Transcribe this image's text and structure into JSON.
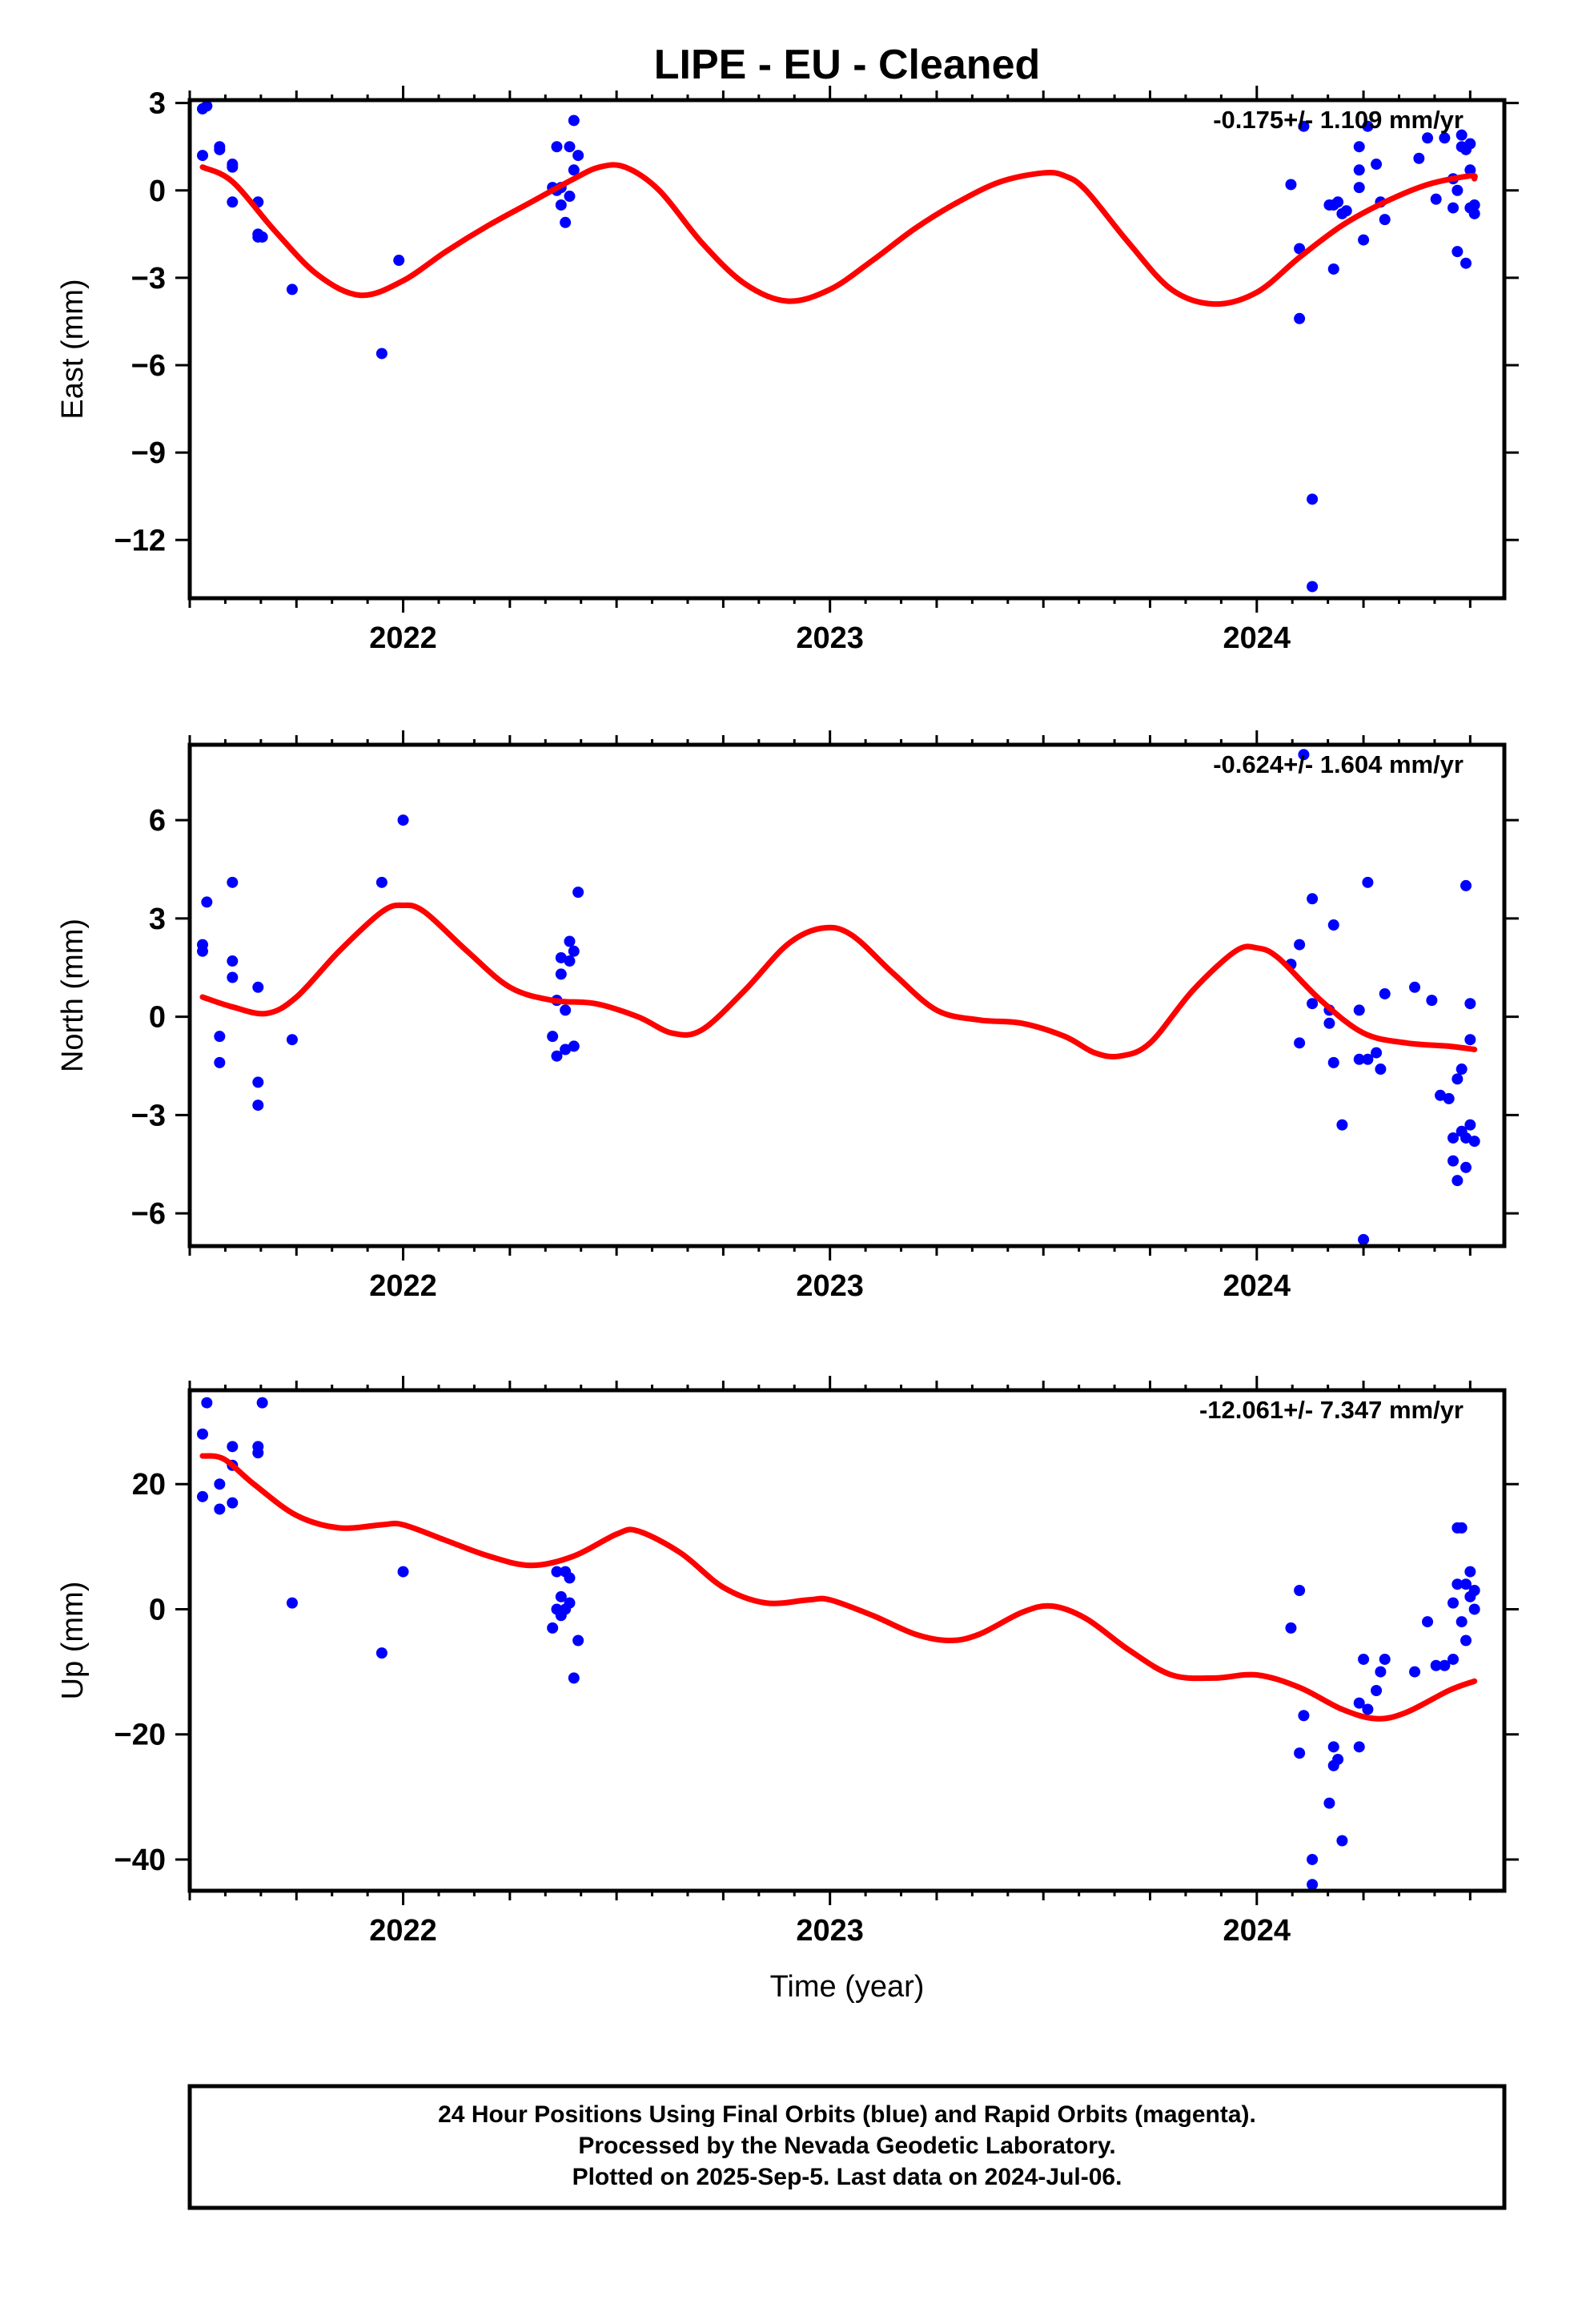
{
  "title": "LIPE  - EU - Cleaned",
  "xlabel": "Time (year)",
  "footer": {
    "line1": "24 Hour Positions Using Final Orbits (blue) and Rapid Orbits (magenta).",
    "line2": "Processed by the Nevada Geodetic Laboratory.",
    "line3": "Plotted on 2025-Sep-5. Last data on 2024-Jul-06."
  },
  "colors": {
    "points": "#0000ff",
    "fit": "#ff0000",
    "axes": "#000000"
  },
  "chart_data": [
    {
      "type": "scatter",
      "ylabel": "East (mm)",
      "rate": "-0.175+/- 1.109 mm/yr",
      "xlim": [
        2021.5,
        2024.58
      ],
      "ylim": [
        -14,
        3.1
      ],
      "yticks": [
        3,
        0,
        -3,
        -6,
        -9,
        -12
      ],
      "ytick_labels": [
        "3",
        "0",
        "−3",
        "−6",
        "−9",
        "−12"
      ],
      "xticks": [
        2022,
        2023,
        2024
      ],
      "xtick_labels": [
        "2022",
        "2023",
        "2024"
      ],
      "points": [
        [
          2021.53,
          1.2
        ],
        [
          2021.53,
          2.8
        ],
        [
          2021.54,
          2.9
        ],
        [
          2021.57,
          1.4
        ],
        [
          2021.57,
          1.5
        ],
        [
          2021.6,
          -0.4
        ],
        [
          2021.6,
          0.9
        ],
        [
          2021.6,
          0.8
        ],
        [
          2021.66,
          -1.5
        ],
        [
          2021.66,
          -1.6
        ],
        [
          2021.66,
          -0.4
        ],
        [
          2021.67,
          -1.6
        ],
        [
          2021.74,
          -3.4
        ],
        [
          2021.95,
          -5.6
        ],
        [
          2021.99,
          -2.4
        ],
        [
          2022.35,
          0.1
        ],
        [
          2022.36,
          1.5
        ],
        [
          2022.36,
          0.0
        ],
        [
          2022.37,
          -0.5
        ],
        [
          2022.37,
          0.1
        ],
        [
          2022.38,
          -1.1
        ],
        [
          2022.39,
          -0.2
        ],
        [
          2022.39,
          1.5
        ],
        [
          2022.4,
          0.7
        ],
        [
          2022.4,
          2.4
        ],
        [
          2022.41,
          1.2
        ],
        [
          2024.08,
          0.2
        ],
        [
          2024.1,
          -2.0
        ],
        [
          2024.1,
          -4.4
        ],
        [
          2024.11,
          2.2
        ],
        [
          2024.13,
          -10.6
        ],
        [
          2024.13,
          -13.6
        ],
        [
          2024.17,
          -0.5
        ],
        [
          2024.18,
          -0.5
        ],
        [
          2024.18,
          -2.7
        ],
        [
          2024.19,
          -0.4
        ],
        [
          2024.2,
          -0.8
        ],
        [
          2024.21,
          -0.7
        ],
        [
          2024.24,
          0.1
        ],
        [
          2024.24,
          0.7
        ],
        [
          2024.24,
          1.5
        ],
        [
          2024.25,
          -1.7
        ],
        [
          2024.26,
          2.2
        ],
        [
          2024.28,
          0.9
        ],
        [
          2024.29,
          -0.4
        ],
        [
          2024.3,
          -1.0
        ],
        [
          2024.38,
          1.1
        ],
        [
          2024.4,
          1.8
        ],
        [
          2024.42,
          -0.3
        ],
        [
          2024.44,
          1.8
        ],
        [
          2024.46,
          0.4
        ],
        [
          2024.46,
          -0.6
        ],
        [
          2024.47,
          0.0
        ],
        [
          2024.47,
          -2.1
        ],
        [
          2024.48,
          1.5
        ],
        [
          2024.48,
          1.9
        ],
        [
          2024.49,
          1.4
        ],
        [
          2024.49,
          -2.5
        ],
        [
          2024.5,
          -0.6
        ],
        [
          2024.5,
          1.6
        ],
        [
          2024.5,
          0.7
        ],
        [
          2024.51,
          -0.5
        ],
        [
          2024.51,
          -0.8
        ]
      ],
      "fit": [
        [
          2021.53,
          0.8
        ],
        [
          2021.6,
          0.3
        ],
        [
          2021.7,
          -1.4
        ],
        [
          2021.8,
          -2.9
        ],
        [
          2021.9,
          -3.6
        ],
        [
          2022.0,
          -3.1
        ],
        [
          2022.1,
          -2.1
        ],
        [
          2022.2,
          -1.2
        ],
        [
          2022.3,
          -0.4
        ],
        [
          2022.4,
          0.4
        ],
        [
          2022.46,
          0.8
        ],
        [
          2022.52,
          0.8
        ],
        [
          2022.6,
          0.0
        ],
        [
          2022.7,
          -1.8
        ],
        [
          2022.8,
          -3.2
        ],
        [
          2022.9,
          -3.8
        ],
        [
          2023.0,
          -3.4
        ],
        [
          2023.1,
          -2.4
        ],
        [
          2023.2,
          -1.3
        ],
        [
          2023.3,
          -0.4
        ],
        [
          2023.4,
          0.3
        ],
        [
          2023.5,
          0.6
        ],
        [
          2023.55,
          0.5
        ],
        [
          2023.6,
          0.0
        ],
        [
          2023.7,
          -1.8
        ],
        [
          2023.8,
          -3.4
        ],
        [
          2023.9,
          -3.9
        ],
        [
          2024.0,
          -3.5
        ],
        [
          2024.1,
          -2.3
        ],
        [
          2024.2,
          -1.2
        ],
        [
          2024.3,
          -0.4
        ],
        [
          2024.4,
          0.2
        ],
        [
          2024.5,
          0.5
        ],
        [
          2024.51,
          0.4
        ]
      ]
    },
    {
      "type": "scatter",
      "ylabel": "North (mm)",
      "rate": "-0.624+/- 1.604 mm/yr",
      "xlim": [
        2021.5,
        2024.58
      ],
      "ylim": [
        -7,
        8.3
      ],
      "yticks": [
        6,
        3,
        0,
        -3,
        -6
      ],
      "ytick_labels": [
        "6",
        "3",
        "0",
        "−3",
        "−6"
      ],
      "xticks": [
        2022,
        2023,
        2024
      ],
      "xtick_labels": [
        "2022",
        "2023",
        "2024"
      ],
      "points": [
        [
          2021.53,
          2.2
        ],
        [
          2021.53,
          2.0
        ],
        [
          2021.54,
          3.5
        ],
        [
          2021.57,
          -1.4
        ],
        [
          2021.57,
          -0.6
        ],
        [
          2021.6,
          4.1
        ],
        [
          2021.6,
          1.7
        ],
        [
          2021.6,
          1.2
        ],
        [
          2021.66,
          0.9
        ],
        [
          2021.66,
          -2.0
        ],
        [
          2021.66,
          -2.7
        ],
        [
          2021.74,
          -0.7
        ],
        [
          2021.95,
          4.1
        ],
        [
          2022.0,
          6.0
        ],
        [
          2022.35,
          -0.6
        ],
        [
          2022.36,
          -1.2
        ],
        [
          2022.36,
          0.5
        ],
        [
          2022.37,
          1.8
        ],
        [
          2022.37,
          1.3
        ],
        [
          2022.38,
          0.2
        ],
        [
          2022.38,
          -1.0
        ],
        [
          2022.39,
          1.7
        ],
        [
          2022.39,
          2.3
        ],
        [
          2022.4,
          2.0
        ],
        [
          2022.4,
          -0.9
        ],
        [
          2022.41,
          3.8
        ],
        [
          2024.08,
          1.6
        ],
        [
          2024.1,
          2.2
        ],
        [
          2024.1,
          -0.8
        ],
        [
          2024.11,
          8.0
        ],
        [
          2024.13,
          3.6
        ],
        [
          2024.13,
          0.4
        ],
        [
          2024.17,
          0.2
        ],
        [
          2024.17,
          -0.2
        ],
        [
          2024.18,
          2.8
        ],
        [
          2024.18,
          -1.4
        ],
        [
          2024.2,
          -3.3
        ],
        [
          2024.24,
          0.2
        ],
        [
          2024.24,
          -1.3
        ],
        [
          2024.25,
          -6.8
        ],
        [
          2024.26,
          4.1
        ],
        [
          2024.26,
          -1.3
        ],
        [
          2024.28,
          -1.1
        ],
        [
          2024.29,
          -1.6
        ],
        [
          2024.3,
          0.7
        ],
        [
          2024.37,
          0.9
        ],
        [
          2024.41,
          0.5
        ],
        [
          2024.43,
          -2.4
        ],
        [
          2024.45,
          -2.5
        ],
        [
          2024.46,
          -3.7
        ],
        [
          2024.46,
          -4.4
        ],
        [
          2024.47,
          -5.0
        ],
        [
          2024.47,
          -1.9
        ],
        [
          2024.48,
          -3.5
        ],
        [
          2024.48,
          -1.6
        ],
        [
          2024.49,
          -4.6
        ],
        [
          2024.49,
          -3.7
        ],
        [
          2024.49,
          4.0
        ],
        [
          2024.5,
          -3.3
        ],
        [
          2024.5,
          0.4
        ],
        [
          2024.5,
          -0.7
        ],
        [
          2024.51,
          -3.8
        ]
      ],
      "fit": [
        [
          2021.53,
          0.6
        ],
        [
          2021.6,
          0.3
        ],
        [
          2021.68,
          0.1
        ],
        [
          2021.75,
          0.6
        ],
        [
          2021.85,
          2.0
        ],
        [
          2021.95,
          3.2
        ],
        [
          2022.0,
          3.4
        ],
        [
          2022.05,
          3.2
        ],
        [
          2022.15,
          2.0
        ],
        [
          2022.25,
          0.9
        ],
        [
          2022.35,
          0.5
        ],
        [
          2022.45,
          0.4
        ],
        [
          2022.55,
          0.0
        ],
        [
          2022.63,
          -0.5
        ],
        [
          2022.7,
          -0.4
        ],
        [
          2022.8,
          0.8
        ],
        [
          2022.9,
          2.2
        ],
        [
          2022.98,
          2.7
        ],
        [
          2023.05,
          2.5
        ],
        [
          2023.15,
          1.3
        ],
        [
          2023.25,
          0.2
        ],
        [
          2023.35,
          -0.1
        ],
        [
          2023.45,
          -0.2
        ],
        [
          2023.55,
          -0.6
        ],
        [
          2023.62,
          -1.1
        ],
        [
          2023.68,
          -1.2
        ],
        [
          2023.75,
          -0.8
        ],
        [
          2023.85,
          0.8
        ],
        [
          2023.95,
          2.0
        ],
        [
          2024.0,
          2.1
        ],
        [
          2024.05,
          1.8
        ],
        [
          2024.15,
          0.5
        ],
        [
          2024.25,
          -0.5
        ],
        [
          2024.35,
          -0.8
        ],
        [
          2024.45,
          -0.9
        ],
        [
          2024.51,
          -1.0
        ]
      ]
    },
    {
      "type": "scatter",
      "ylabel": "Up (mm)",
      "rate": "-12.061+/- 7.347 mm/yr",
      "xlim": [
        2021.5,
        2024.58
      ],
      "ylim": [
        -45,
        35
      ],
      "yticks": [
        20,
        0,
        -20,
        -40
      ],
      "ytick_labels": [
        "20",
        "0",
        "−20",
        "−40"
      ],
      "xticks": [
        2022,
        2023,
        2024
      ],
      "xtick_labels": [
        "2022",
        "2023",
        "2024"
      ],
      "points": [
        [
          2021.53,
          28
        ],
        [
          2021.53,
          18
        ],
        [
          2021.54,
          33
        ],
        [
          2021.57,
          16
        ],
        [
          2021.57,
          20
        ],
        [
          2021.6,
          17
        ],
        [
          2021.6,
          23
        ],
        [
          2021.6,
          26
        ],
        [
          2021.66,
          26
        ],
        [
          2021.66,
          25
        ],
        [
          2021.67,
          33
        ],
        [
          2021.74,
          1
        ],
        [
          2021.95,
          -7
        ],
        [
          2022.0,
          6
        ],
        [
          2022.35,
          -3
        ],
        [
          2022.36,
          0
        ],
        [
          2022.36,
          6
        ],
        [
          2022.37,
          -1
        ],
        [
          2022.37,
          2
        ],
        [
          2022.38,
          0
        ],
        [
          2022.38,
          6
        ],
        [
          2022.39,
          1
        ],
        [
          2022.39,
          5
        ],
        [
          2022.4,
          -11
        ],
        [
          2022.41,
          -5
        ],
        [
          2024.08,
          -3
        ],
        [
          2024.1,
          3
        ],
        [
          2024.1,
          -23
        ],
        [
          2024.11,
          -17
        ],
        [
          2024.13,
          -40
        ],
        [
          2024.13,
          -44
        ],
        [
          2024.17,
          -31
        ],
        [
          2024.18,
          -22
        ],
        [
          2024.18,
          -25
        ],
        [
          2024.19,
          -24
        ],
        [
          2024.2,
          -37
        ],
        [
          2024.24,
          -15
        ],
        [
          2024.24,
          -22
        ],
        [
          2024.25,
          -8
        ],
        [
          2024.26,
          -16
        ],
        [
          2024.28,
          -13
        ],
        [
          2024.29,
          -10
        ],
        [
          2024.3,
          -8
        ],
        [
          2024.37,
          -10
        ],
        [
          2024.4,
          -2
        ],
        [
          2024.42,
          -9
        ],
        [
          2024.44,
          -9
        ],
        [
          2024.46,
          1
        ],
        [
          2024.46,
          -8
        ],
        [
          2024.47,
          13
        ],
        [
          2024.47,
          4
        ],
        [
          2024.48,
          13
        ],
        [
          2024.48,
          -2
        ],
        [
          2024.49,
          -5
        ],
        [
          2024.49,
          4
        ],
        [
          2024.5,
          6
        ],
        [
          2024.5,
          2
        ],
        [
          2024.51,
          0
        ],
        [
          2024.51,
          3
        ]
      ],
      "fit": [
        [
          2021.53,
          24.5
        ],
        [
          2021.58,
          24
        ],
        [
          2021.65,
          20
        ],
        [
          2021.75,
          15
        ],
        [
          2021.85,
          13
        ],
        [
          2021.95,
          13.5
        ],
        [
          2022.0,
          13.5
        ],
        [
          2022.1,
          11
        ],
        [
          2022.2,
          8.5
        ],
        [
          2022.3,
          7
        ],
        [
          2022.4,
          8.5
        ],
        [
          2022.5,
          12
        ],
        [
          2022.55,
          12.5
        ],
        [
          2022.65,
          9
        ],
        [
          2022.75,
          3.5
        ],
        [
          2022.85,
          1
        ],
        [
          2022.95,
          1.5
        ],
        [
          2023.0,
          1.5
        ],
        [
          2023.1,
          -1
        ],
        [
          2023.2,
          -4
        ],
        [
          2023.28,
          -5
        ],
        [
          2023.35,
          -4
        ],
        [
          2023.45,
          -0.5
        ],
        [
          2023.52,
          0.5
        ],
        [
          2023.6,
          -1.5
        ],
        [
          2023.7,
          -6.5
        ],
        [
          2023.8,
          -10.5
        ],
        [
          2023.9,
          -11
        ],
        [
          2024.0,
          -10.5
        ],
        [
          2024.1,
          -12.5
        ],
        [
          2024.2,
          -16
        ],
        [
          2024.28,
          -17.5
        ],
        [
          2024.35,
          -16.5
        ],
        [
          2024.45,
          -13
        ],
        [
          2024.51,
          -11.5
        ]
      ]
    }
  ]
}
